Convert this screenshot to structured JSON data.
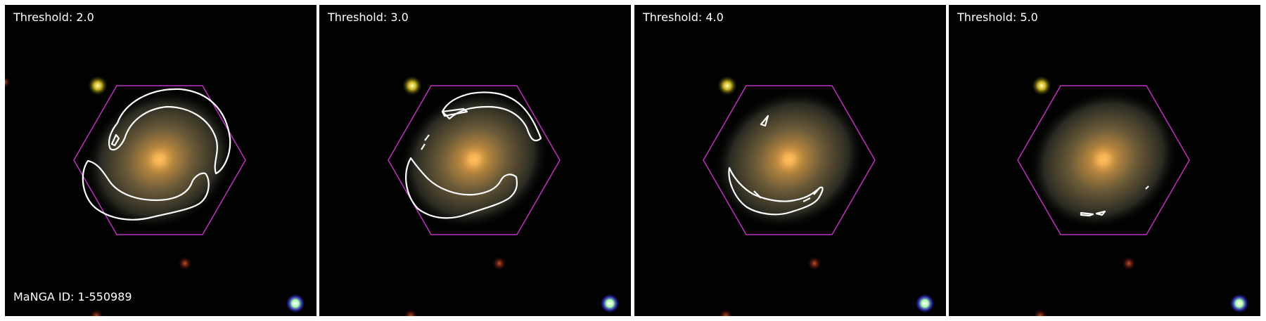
{
  "panels": [
    {
      "label": "Threshold: 2.0"
    },
    {
      "label": "Threshold: 3.0"
    },
    {
      "label": "Threshold: 4.0"
    },
    {
      "label": "Threshold: 5.0"
    }
  ],
  "manga_id_label": "MaNGA ID: 1-550989",
  "colors": {
    "hexagon": "#c030c0",
    "contour": "#ffffff",
    "background": "#020202",
    "text": "#ffffff"
  }
}
